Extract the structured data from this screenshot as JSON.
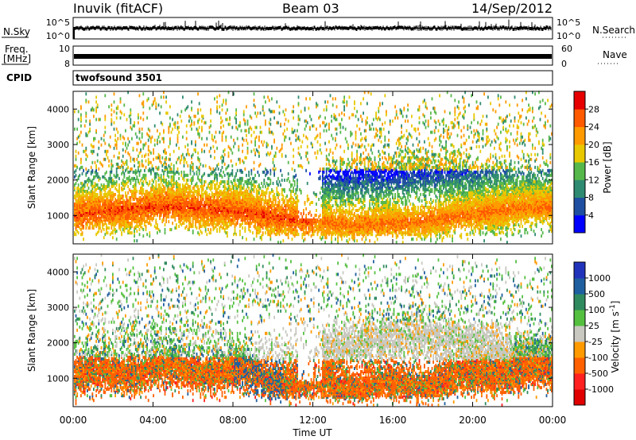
{
  "header": {
    "station": "Inuvik (fitACF)",
    "beam": "Beam 03",
    "date": "14/Sep/2012"
  },
  "panels": {
    "nsky": {
      "label": "N.Sky",
      "right_label": "N.Search",
      "tick_top": "10^5",
      "tick_bottom": "10^0",
      "right_tick_top": "10^5",
      "right_tick_bottom": "10^0"
    },
    "freq": {
      "label_line1": "Freq.",
      "label_line2": "[MHz]",
      "tick_top": "10",
      "tick_bottom": "8",
      "right_label": "Nave",
      "right_tick_top": "60",
      "right_tick_bottom": "0"
    },
    "cpid": {
      "label": "CPID",
      "value": "twofsound 3501"
    }
  },
  "chart_data": [
    {
      "type": "heatmap",
      "name": "power",
      "ylabel": "Slant Range [km]",
      "ylim": [
        200,
        4500
      ],
      "yticks": [
        "1000",
        "2000",
        "3000",
        "4000"
      ],
      "colorbar_label": "Power [dB]",
      "colorbar_ticks": [
        "4",
        "8",
        "12",
        "16",
        "20",
        "24",
        "28"
      ],
      "colorbar_colors": [
        "#0000ff",
        "#1e4fa0",
        "#2e8a70",
        "#56b84a",
        "#e8c800",
        "#ff9a00",
        "#ff5a00",
        "#e60000"
      ],
      "description_bands": [
        {
          "t_start": 0,
          "t_end": 7,
          "range": [
            500,
            1600
          ],
          "level": "red"
        },
        {
          "t_start": 7,
          "t_end": 12,
          "range": [
            600,
            1300
          ],
          "level": "red-orange"
        },
        {
          "t_start": 12,
          "t_end": 24,
          "range": [
            600,
            1400
          ],
          "level": "orange-red"
        },
        {
          "t_start": 12,
          "t_end": 24,
          "range": [
            1400,
            2600
          ],
          "level": "green-orange"
        }
      ]
    },
    {
      "type": "heatmap",
      "name": "velocity",
      "ylabel": "Slant Range [km]",
      "ylim": [
        200,
        4500
      ],
      "yticks": [
        "1000",
        "2000",
        "3000",
        "4000"
      ],
      "colorbar_label": "Velocity [m s^-1]",
      "colorbar_ticks": [
        "1000",
        "500",
        "100",
        "25",
        "-25",
        "-100",
        "-500",
        "-1000"
      ],
      "colorbar_colors": [
        "#2233bb",
        "#1e5fa0",
        "#2f8a5e",
        "#55c040",
        "#c8c8c0",
        "#ff9a00",
        "#ff6000",
        "#ff2020",
        "#e00000"
      ],
      "xlabel": "Time UT",
      "xticks": [
        "00:00",
        "04:00",
        "08:00",
        "12:00",
        "16:00",
        "20:00",
        "00:00"
      ],
      "xlim_hours": [
        0,
        24
      ]
    }
  ]
}
